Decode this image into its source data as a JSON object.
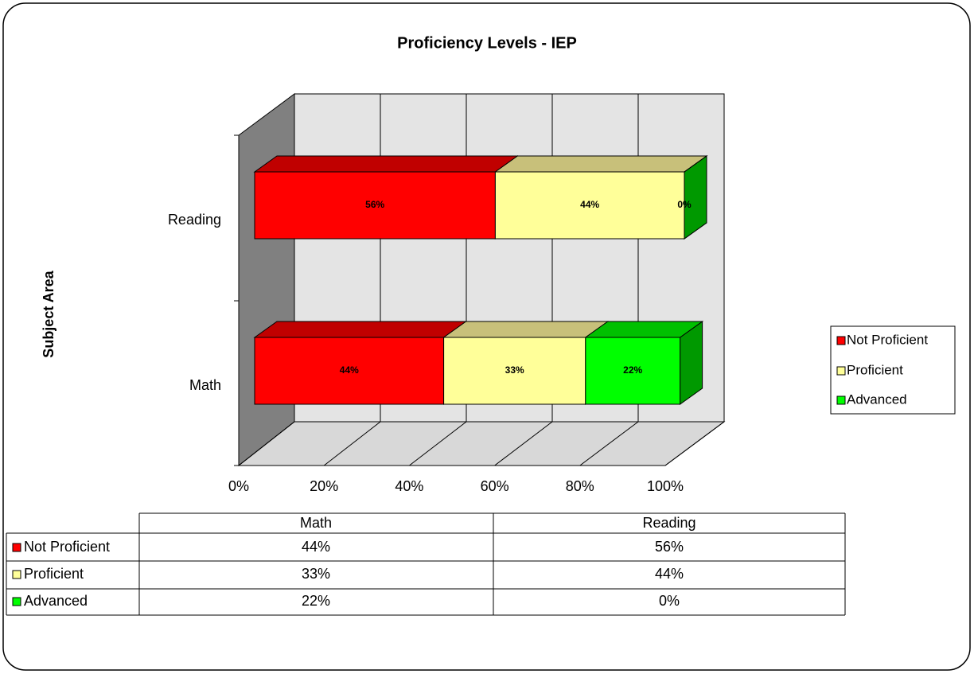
{
  "chart_data": {
    "type": "bar3d_stacked_horizontal",
    "title": "Proficiency Levels - IEP",
    "y_label": "Subject Area",
    "categories": [
      "Math",
      "Reading"
    ],
    "series": [
      {
        "name": "Not Proficient",
        "color": "#ff0000",
        "top_color": "#c00000",
        "side_color": "#a00000",
        "values": [
          44,
          56
        ],
        "value_labels": [
          "44%",
          "56%"
        ]
      },
      {
        "name": "Proficient",
        "color": "#ffff99",
        "top_color": "#c8c07a",
        "side_color": "#a8a060",
        "values": [
          33,
          44
        ],
        "value_labels": [
          "33%",
          "44%"
        ]
      },
      {
        "name": "Advanced",
        "color": "#00ff00",
        "top_color": "#00c000",
        "side_color": "#009900",
        "values": [
          22,
          0
        ],
        "value_labels": [
          "22%",
          "0%"
        ]
      }
    ],
    "xlim": [
      0,
      100
    ],
    "xticks": [
      {
        "value": 0,
        "label": "0%"
      },
      {
        "value": 20,
        "label": "20%"
      },
      {
        "value": 40,
        "label": "40%"
      },
      {
        "value": 60,
        "label": "60%"
      },
      {
        "value": 80,
        "label": "80%"
      },
      {
        "value": 100,
        "label": "100%"
      }
    ],
    "grid": true,
    "legend": "right"
  }
}
